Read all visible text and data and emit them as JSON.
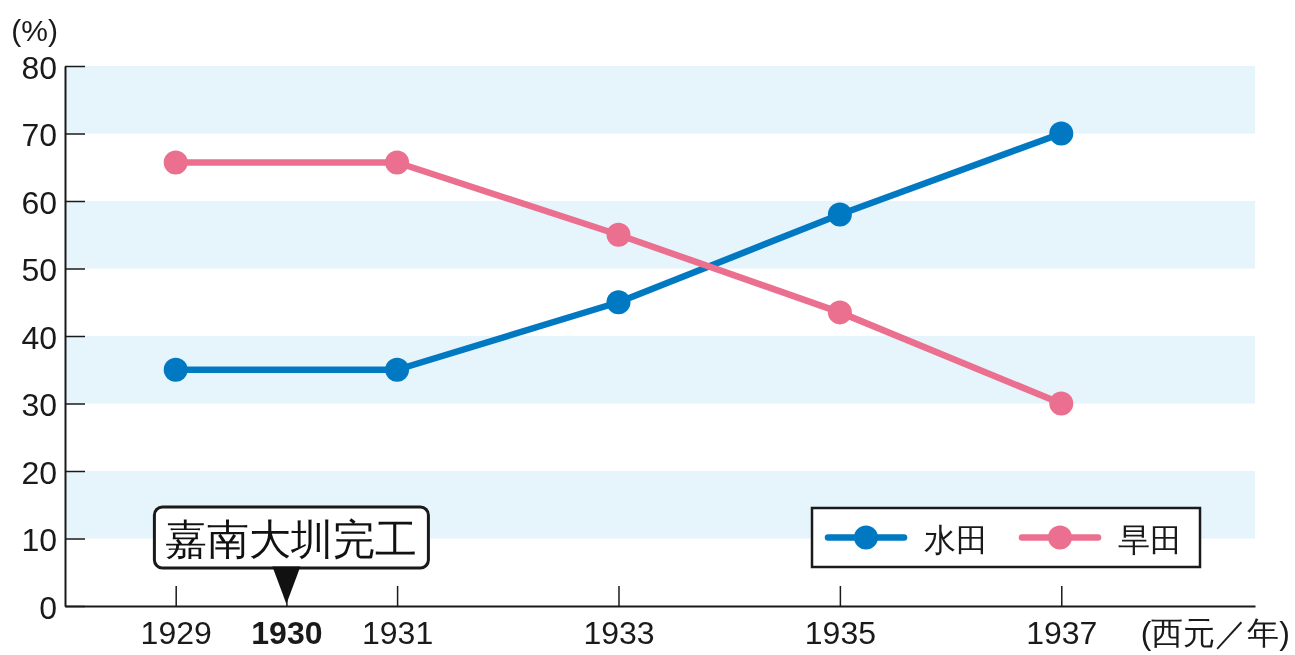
{
  "chart_data": {
    "type": "line",
    "ylabel": "(%)",
    "xlabel": "(西元／年)",
    "x": [
      1929,
      1931,
      1933,
      1935,
      1937
    ],
    "series": [
      {
        "name": "水田",
        "color": "#0079c2",
        "values": [
          35,
          35,
          45,
          58,
          70
        ]
      },
      {
        "name": "旱田",
        "color": "#eb6f8e",
        "values": [
          65.7,
          65.7,
          55,
          43.5,
          30
        ]
      }
    ],
    "xlim": [
      1928,
      1938.75
    ],
    "xticks": [
      1929,
      1930,
      1931,
      1933,
      1935,
      1937
    ],
    "ylim": [
      0,
      80
    ],
    "yticks": [
      0,
      10,
      20,
      30,
      40,
      50,
      60,
      70,
      80
    ],
    "bands": [
      {
        "axis": "y",
        "from": 10,
        "to": 20,
        "color": "#e6f4fc"
      },
      {
        "axis": "y",
        "from": 30,
        "to": 40,
        "color": "#e6f4fc"
      },
      {
        "axis": "y",
        "from": 50,
        "to": 60,
        "color": "#e6f4fc"
      },
      {
        "axis": "y",
        "from": 70,
        "to": 80,
        "color": "#e6f4fc"
      }
    ],
    "annotations": [
      {
        "text": "嘉南大圳完工",
        "x": 1930
      }
    ],
    "legend": "bottom right",
    "marker": "circle",
    "line_style": "solid"
  }
}
